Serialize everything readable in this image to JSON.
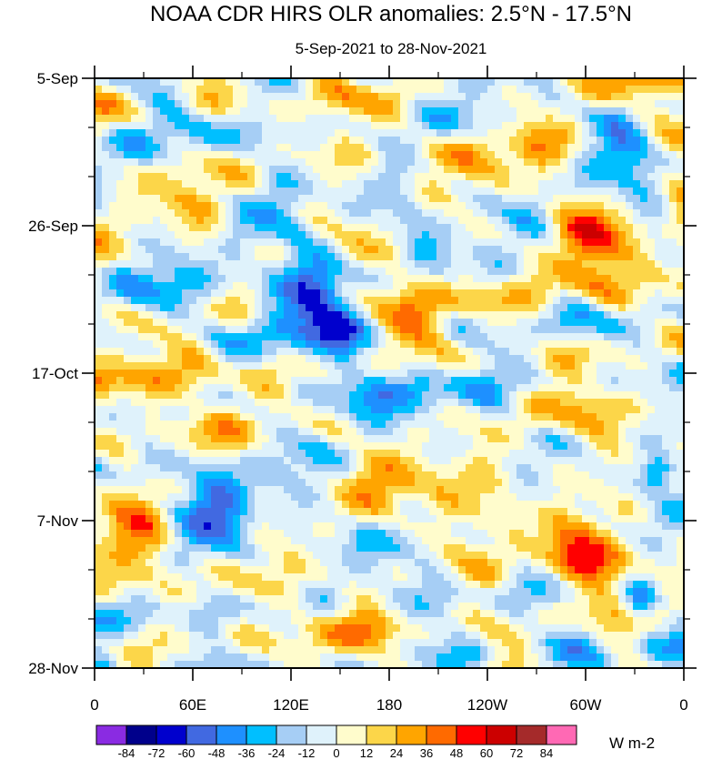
{
  "chart_data": {
    "type": "heatmap",
    "title": "NOAA CDR HIRS OLR anomalies: 2.5°N - 17.5°N",
    "subtitle": "5-Sep-2021 to 28-Nov-2021",
    "x_tick_labels": [
      "0",
      "60E",
      "120E",
      "180",
      "120W",
      "60W",
      "0"
    ],
    "x_tick_values_deg_east": [
      0,
      60,
      120,
      180,
      240,
      300,
      360
    ],
    "y_tick_labels": [
      "5-Sep",
      "26-Sep",
      "17-Oct",
      "7-Nov",
      "28-Nov"
    ],
    "y_range": [
      "5-Sep-2021",
      "28-Nov-2021"
    ],
    "x_range_deg_east": [
      0,
      360
    ],
    "y_axis_direction": "time increasing downward",
    "colorbar": {
      "levels": [
        -84,
        -72,
        -60,
        -48,
        -36,
        -24,
        -12,
        0,
        12,
        24,
        36,
        48,
        60,
        72,
        84
      ],
      "level_labels": [
        "-84",
        "-72",
        "-60",
        "-48",
        "-36",
        "-24",
        "-12",
        "0",
        "12",
        "24",
        "36",
        "48",
        "60",
        "72",
        "84"
      ],
      "colors": [
        "#8a2be2",
        "#00008b",
        "#0000cd",
        "#4169e1",
        "#1e90ff",
        "#00bfff",
        "#a6cef5",
        "#dff2fb",
        "#fffccc",
        "#fcd649",
        "#ffa500",
        "#ff6a00",
        "#ff0000",
        "#cc0000",
        "#a52a2a",
        "#ff69b4"
      ],
      "units": "W m-2"
    }
  }
}
